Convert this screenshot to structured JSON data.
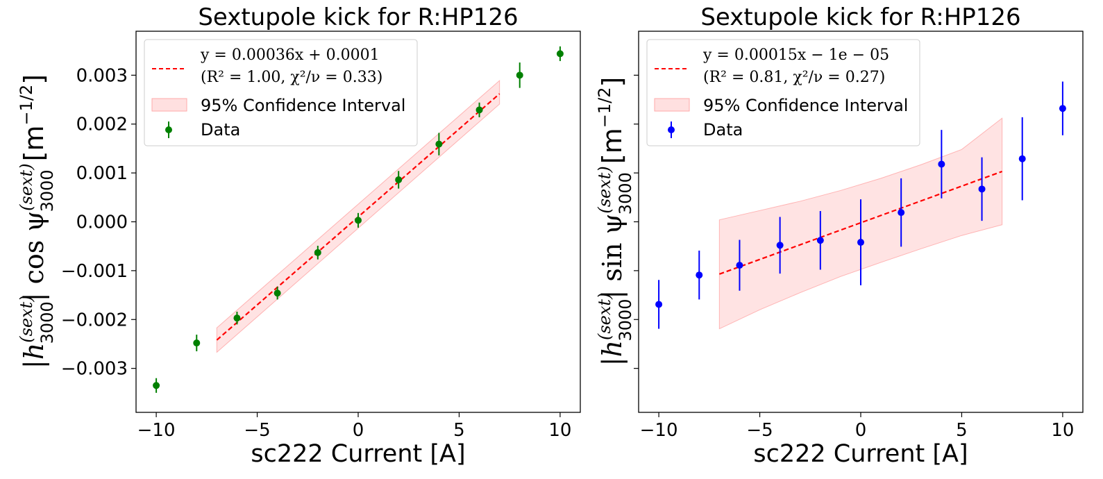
{
  "chart_data": [
    {
      "type": "scatter",
      "title": "Sextupole kick for R:HP126",
      "xlabel": "sc222 Current [A]",
      "ylabel": {
        "prefix": "|h",
        "sup": "(sext)",
        "sub": "3000",
        "mid": "| cos ψ",
        "unit": "[m",
        "unit_sup": "−1/2",
        "unit_end": "]"
      },
      "xlim": [
        -11,
        11
      ],
      "ylim": [
        -0.0039,
        0.0039
      ],
      "xticks": [
        -10,
        -5,
        0,
        5,
        10
      ],
      "xtick_labels": [
        "−10",
        "−5",
        "0",
        "5",
        "10"
      ],
      "yticks": [
        -0.003,
        -0.002,
        -0.001,
        0,
        0.001,
        0.002,
        0.003
      ],
      "ytick_labels": [
        "−0.003",
        "−0.002",
        "−0.001",
        "0.000",
        "0.001",
        "0.002",
        "0.003"
      ],
      "show_ytick_labels": true,
      "marker_color": "#008000",
      "fit_color": "#ff0000",
      "band_color": "#ffcccc",
      "legend_location": "upper-left",
      "legend": {
        "fit_line1": "y = 0.00036x + 0.0001",
        "fit_line2": "(R² = 1.00, χ²/ν = 0.33)",
        "band": "95% Confidence Interval",
        "data": "Data"
      },
      "data": {
        "x": [
          -10,
          -8,
          -6,
          -4,
          -2,
          0,
          2,
          4,
          6,
          8,
          10
        ],
        "y": [
          -0.00335,
          -0.00248,
          -0.00197,
          -0.00146,
          -0.00063,
          3e-05,
          0.00086,
          0.00159,
          0.00229,
          0.003,
          0.00344
        ],
        "yerr": [
          0.00015,
          0.00017,
          0.00013,
          0.00013,
          0.00014,
          0.00015,
          0.00018,
          0.00023,
          0.00015,
          0.00026,
          0.00015
        ]
      },
      "fit": {
        "x": [
          -7,
          7
        ],
        "y": [
          -0.00242,
          0.00262
        ]
      },
      "band": {
        "x": [
          -7,
          7
        ],
        "lower": [
          -0.00267,
          0.00241
        ],
        "upper": [
          -0.00217,
          0.00289
        ]
      }
    },
    {
      "type": "scatter",
      "title": "Sextupole kick for R:HP126",
      "xlabel": "sc222 Current [A]",
      "ylabel": {
        "prefix": "|h",
        "sup": "(sext)",
        "sub": "3000",
        "mid": "| sin ψ",
        "unit": "[m",
        "unit_sup": "−1/2",
        "unit_end": "]"
      },
      "xlim": [
        -11,
        11
      ],
      "ylim": [
        -0.0039,
        0.0039
      ],
      "xticks": [
        -10,
        -5,
        0,
        5,
        10
      ],
      "xtick_labels": [
        "−10",
        "−5",
        "0",
        "5",
        "10"
      ],
      "yticks": [
        -0.003,
        -0.002,
        -0.001,
        0,
        0.001,
        0.002,
        0.003
      ],
      "show_ytick_labels": false,
      "marker_color": "#0000ff",
      "fit_color": "#ff0000",
      "band_color": "#ffcccc",
      "legend_location": "upper-left",
      "legend": {
        "fit_line1": "y = 0.00015x − 1e − 05",
        "fit_line2": "(R² = 0.81, χ²/ν = 0.27)",
        "band": "95% Confidence Interval",
        "data": "Data"
      },
      "data": {
        "x": [
          -10,
          -8,
          -6,
          -4,
          -2,
          0,
          2,
          4,
          6,
          8,
          10
        ],
        "y": [
          -0.00169,
          -0.00109,
          -0.00089,
          -0.00048,
          -0.00038,
          -0.00042,
          0.00019,
          0.00118,
          0.00067,
          0.00129,
          0.00232
        ],
        "yerr": [
          0.0005,
          0.0005,
          0.00052,
          0.00058,
          0.0006,
          0.00088,
          0.0007,
          0.0007,
          0.00065,
          0.00085,
          0.00055
        ]
      },
      "fit": {
        "x": [
          -7,
          7
        ],
        "y": [
          -0.00107,
          0.00103
        ]
      },
      "band": {
        "x": [
          -7,
          -5,
          -3,
          -1,
          1,
          3,
          5,
          7
        ],
        "lower": [
          -0.00219,
          -0.0018,
          -0.00145,
          -0.00112,
          -0.00083,
          -0.00055,
          -0.00028,
          -6e-05
        ],
        "upper": [
          4e-05,
          0.00023,
          0.00042,
          0.00064,
          0.00089,
          0.00117,
          0.00148,
          0.00212
        ]
      }
    }
  ]
}
